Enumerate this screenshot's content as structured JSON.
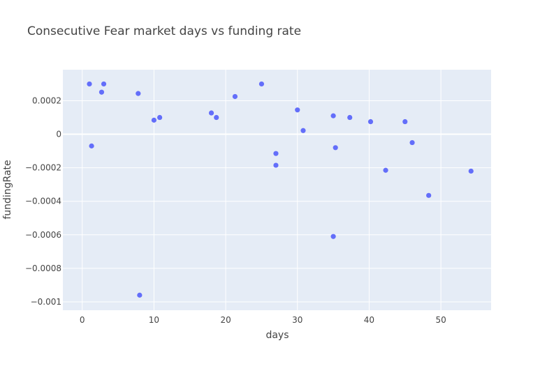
{
  "chart_data": {
    "type": "scatter",
    "title": "Consecutive Fear market days vs funding rate",
    "xlabel": "days",
    "ylabel": "fundingRate",
    "xlim": [
      -2.7,
      57
    ],
    "ylim": [
      -0.00105,
      0.000385
    ],
    "x_ticks": [
      0,
      10,
      20,
      30,
      40,
      50
    ],
    "x_tick_labels": [
      "0",
      "10",
      "20",
      "30",
      "40",
      "50"
    ],
    "y_ticks": [
      -0.001,
      -0.0008,
      -0.0006,
      -0.0004,
      -0.0002,
      0,
      0.0002
    ],
    "y_tick_labels": [
      "−0.001",
      "−0.0008",
      "−0.0006",
      "−0.0004",
      "−0.0002",
      "0",
      "0.0002"
    ],
    "grid": true,
    "legend": "none",
    "colors": {
      "plot_background": "#e5ecf6",
      "grid": "#ffffff",
      "marker": "#636efa",
      "text": "#444444"
    },
    "points": [
      {
        "x": 1,
        "y": 0.0003
      },
      {
        "x": 1.3,
        "y": -7e-05
      },
      {
        "x": 2.7,
        "y": 0.000251
      },
      {
        "x": 3,
        "y": 0.0003
      },
      {
        "x": 7.8,
        "y": 0.000243
      },
      {
        "x": 8,
        "y": -0.00096
      },
      {
        "x": 10,
        "y": 8.4e-05
      },
      {
        "x": 10.8,
        "y": 0.0001
      },
      {
        "x": 18,
        "y": 0.000127
      },
      {
        "x": 18.7,
        "y": 0.0001
      },
      {
        "x": 21.3,
        "y": 0.000225
      },
      {
        "x": 25,
        "y": 0.0003
      },
      {
        "x": 27,
        "y": -0.000115
      },
      {
        "x": 27,
        "y": -0.000185
      },
      {
        "x": 30,
        "y": 0.000145
      },
      {
        "x": 30.8,
        "y": 2.2e-05
      },
      {
        "x": 35,
        "y": 0.00011
      },
      {
        "x": 35,
        "y": -0.00061
      },
      {
        "x": 35.3,
        "y": -8e-05
      },
      {
        "x": 37.3,
        "y": 0.0001
      },
      {
        "x": 40.2,
        "y": 7.5e-05
      },
      {
        "x": 42.3,
        "y": -0.000215
      },
      {
        "x": 45,
        "y": 7.5e-05
      },
      {
        "x": 46,
        "y": -5e-05
      },
      {
        "x": 48.3,
        "y": -0.000365
      },
      {
        "x": 54.2,
        "y": -0.00022
      }
    ]
  }
}
